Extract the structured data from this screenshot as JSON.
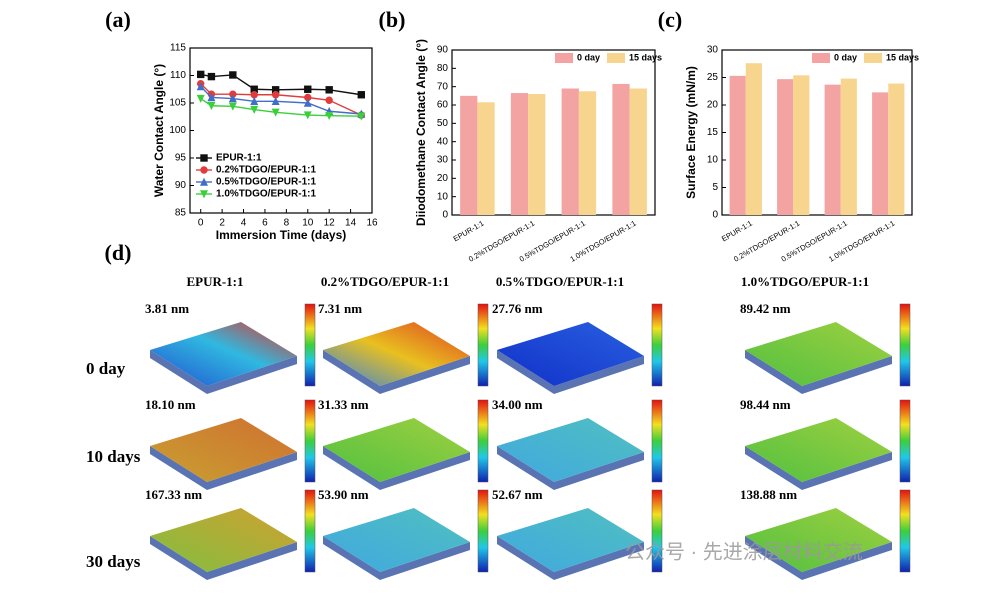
{
  "chart_data": [
    {
      "type": "line",
      "panel_label": "(a)",
      "x_label": "Immersion Time (days)",
      "y_label": "Water Contact Angle (°)",
      "x": [
        0,
        1,
        3,
        5,
        7,
        10,
        12,
        15
      ],
      "xlim": [
        -1,
        16
      ],
      "xticks": [
        0,
        2,
        4,
        6,
        8,
        10,
        12,
        14,
        16
      ],
      "ylim": [
        85,
        115
      ],
      "yticks": [
        85,
        90,
        95,
        100,
        105,
        110,
        115
      ],
      "legend": "lower-left",
      "series": [
        {
          "name": "EPUR-1:1",
          "color": "#111111",
          "values": [
            110.2,
            109.8,
            110.1,
            107.5,
            107.4,
            107.5,
            107.4,
            106.5
          ]
        },
        {
          "name": "0.2%TDGO/EPUR-1:1",
          "color": "#e03c3c",
          "values": [
            108.5,
            106.6,
            106.6,
            106.5,
            106.5,
            106.0,
            105.5,
            102.8
          ]
        },
        {
          "name": "0.5%TDGO/EPUR-1:1",
          "color": "#3f6fc8",
          "values": [
            108.0,
            106.0,
            105.8,
            105.3,
            105.3,
            105.0,
            103.5,
            103.0
          ]
        },
        {
          "name": "1.0%TDGO/EPUR-1:1",
          "color": "#3ccf3c",
          "values": [
            105.8,
            104.5,
            104.4,
            103.8,
            103.3,
            102.8,
            102.7,
            102.6
          ]
        }
      ]
    },
    {
      "type": "bar",
      "panel_label": "(b)",
      "y_label": "Diiodomethane Contact Angle (°)",
      "categories": [
        "EPUR-1:1",
        "0.2%TDGO/EPUR-1:1",
        "0.5%TDGO/EPUR-1:1",
        "1.0%TDGO/EPUR-1:1"
      ],
      "ylim": [
        0,
        90
      ],
      "yticks": [
        0,
        10,
        20,
        30,
        40,
        50,
        60,
        70,
        80,
        90
      ],
      "legend": "upper-right",
      "series": [
        {
          "name": "0 day",
          "color": "#f4a3a3",
          "values": [
            65,
            66.5,
            69,
            71.5
          ]
        },
        {
          "name": "15 days",
          "color": "#f8d58e",
          "values": [
            61.5,
            66,
            67.5,
            69
          ]
        }
      ]
    },
    {
      "type": "bar",
      "panel_label": "(c)",
      "y_label": "Surface Energy (mN/m)",
      "categories": [
        "EPUR-1:1",
        "0.2%TDGO/EPUR-1:1",
        "0.5%TDGO/EPUR-1:1",
        "1.0%TDGO/EPUR-1:1"
      ],
      "ylim": [
        0,
        30
      ],
      "yticks": [
        0,
        5,
        10,
        15,
        20,
        25,
        30
      ],
      "legend": "upper-right",
      "series": [
        {
          "name": "0 day",
          "color": "#f4a3a3",
          "values": [
            25.3,
            24.7,
            23.7,
            22.3
          ]
        },
        {
          "name": "15 days",
          "color": "#f8d58e",
          "values": [
            27.6,
            25.4,
            24.8,
            23.9
          ]
        }
      ]
    }
  ],
  "afm": {
    "panel_label": "(d)",
    "columns": [
      "EPUR-1:1",
      "0.2%TDGO/EPUR-1:1",
      "0.5%TDGO/EPUR-1:1",
      "1.0%TDGO/EPUR-1:1"
    ],
    "rows": [
      "0 day",
      "10 days",
      "30 days"
    ],
    "roughness": [
      [
        "3.81 nm",
        "7.31 nm",
        "27.76 nm",
        "89.42 nm"
      ],
      [
        "18.10 nm",
        "31.33 nm",
        "34.00 nm",
        "98.44 nm"
      ],
      [
        "167.33 nm",
        "53.90 nm",
        "52.67 nm",
        "138.88 nm"
      ]
    ]
  },
  "watermark": "公众号 · 先进涂层材料交流"
}
